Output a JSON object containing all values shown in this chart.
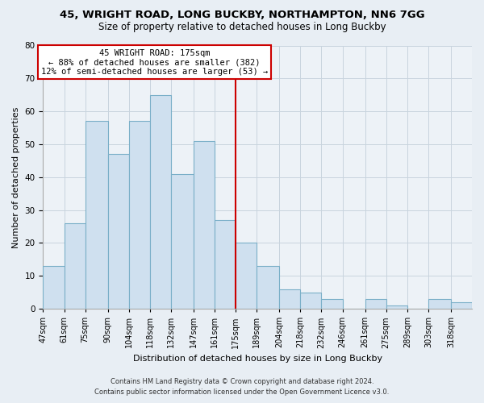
{
  "title": "45, WRIGHT ROAD, LONG BUCKBY, NORTHAMPTON, NN6 7GG",
  "subtitle": "Size of property relative to detached houses in Long Buckby",
  "xlabel": "Distribution of detached houses by size in Long Buckby",
  "ylabel": "Number of detached properties",
  "bar_color": "#cfe0ef",
  "bar_edge_color": "#7aafc8",
  "vline_x": 175,
  "vline_color": "#cc0000",
  "annotation_title": "45 WRIGHT ROAD: 175sqm",
  "annotation_line1": "← 88% of detached houses are smaller (382)",
  "annotation_line2": "12% of semi-detached houses are larger (53) →",
  "annotation_box_color": "#ffffff",
  "annotation_box_edge": "#cc0000",
  "bins": [
    47,
    61,
    75,
    90,
    104,
    118,
    132,
    147,
    161,
    175,
    189,
    204,
    218,
    232,
    246,
    261,
    275,
    289,
    303,
    318,
    332
  ],
  "counts": [
    13,
    26,
    57,
    47,
    57,
    65,
    41,
    51,
    27,
    20,
    13,
    6,
    5,
    3,
    0,
    3,
    1,
    0,
    3,
    2
  ],
  "ylim": [
    0,
    80
  ],
  "yticks": [
    0,
    10,
    20,
    30,
    40,
    50,
    60,
    70,
    80
  ],
  "footer_line1": "Contains HM Land Registry data © Crown copyright and database right 2024.",
  "footer_line2": "Contains public sector information licensed under the Open Government Licence v3.0.",
  "bg_color": "#e8eef4",
  "plot_bg_color": "#edf2f7"
}
